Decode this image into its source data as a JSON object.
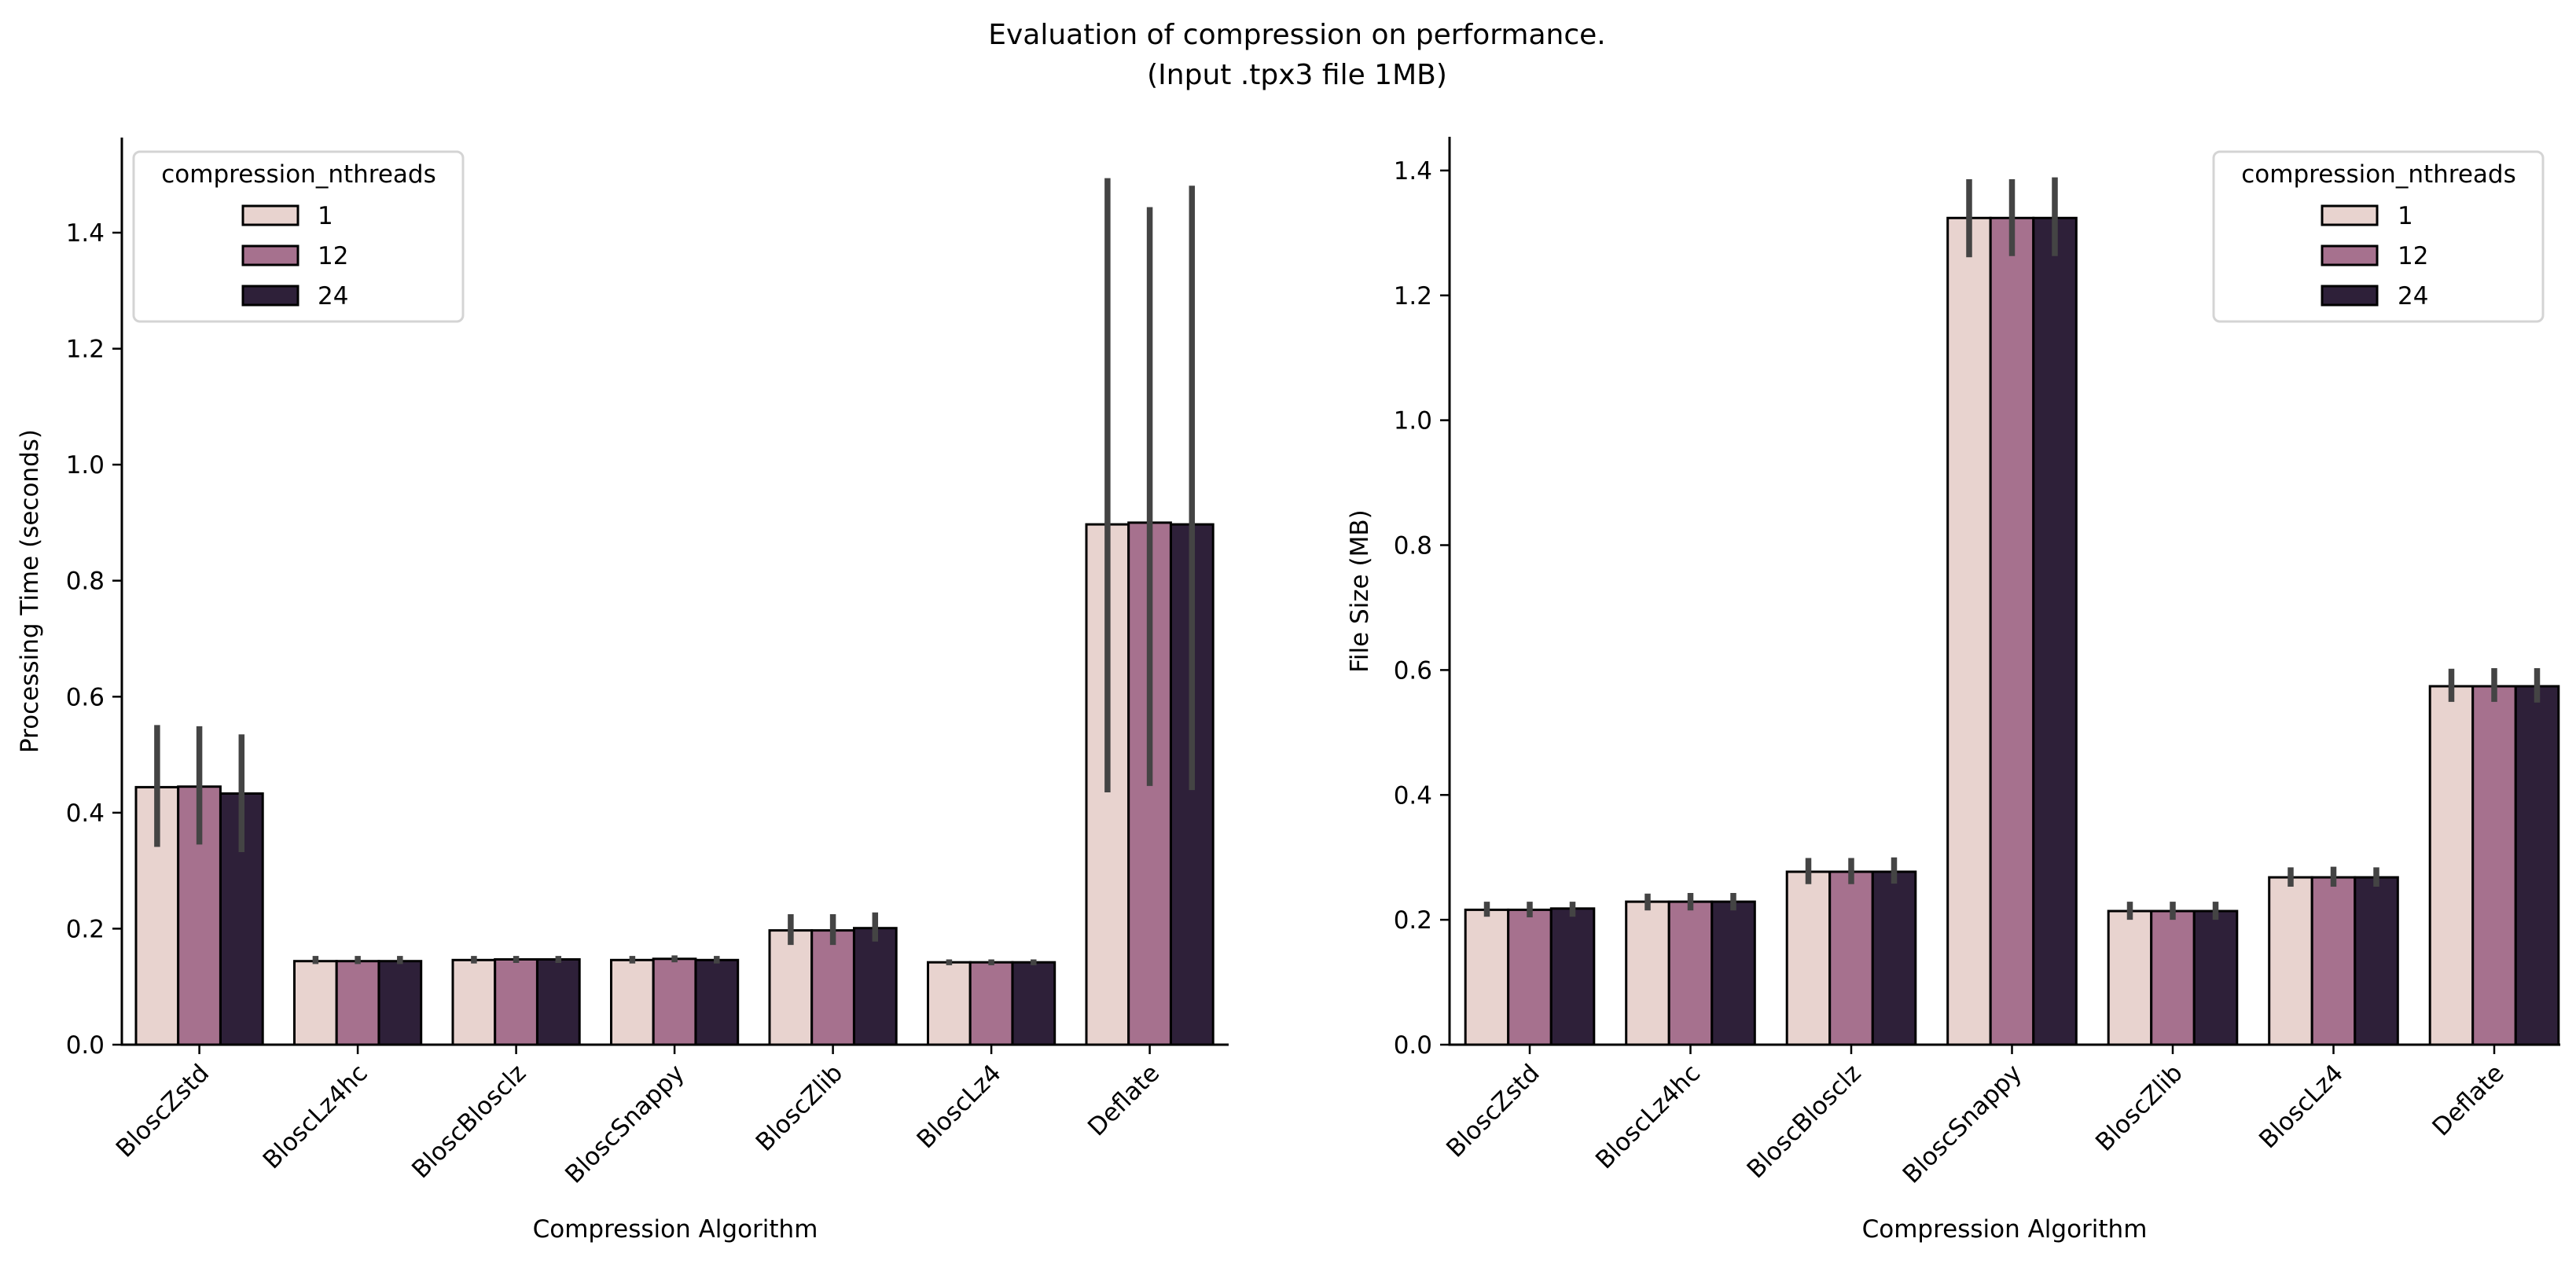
{
  "figure": {
    "title_line1": "Evaluation of compression on performance.",
    "title_line2": "(Input .tpx3 file 1MB)"
  },
  "colors": {
    "series": [
      "#e8d3cf",
      "#a6718e",
      "#2e2039"
    ],
    "edge": "#000000",
    "errorbar": "#444444",
    "legend_border": "#d4d4d4"
  },
  "chart_data": [
    {
      "type": "bar",
      "title": "",
      "xlabel": "Compression Algorithm",
      "ylabel": "Processing Time (seconds)",
      "ylim": [
        0,
        1.564
      ],
      "yticks": [
        "0.0",
        "0.2",
        "0.4",
        "0.6",
        "0.8",
        "1.0",
        "1.2",
        "1.4"
      ],
      "categories": [
        "BloscZstd",
        "BloscLz4hc",
        "BloscBlosclz",
        "BloscSnappy",
        "BloscZlib",
        "BloscLz4",
        "Deflate"
      ],
      "legend": {
        "title": "compression_nthreads",
        "position": "upper-left"
      },
      "grid": false,
      "series": [
        {
          "name": "1",
          "values": [
            0.444,
            0.144,
            0.146,
            0.146,
            0.197,
            0.142,
            0.897
          ],
          "err_low": [
            0.341,
            0.139,
            0.14,
            0.14,
            0.172,
            0.137,
            0.435
          ],
          "err_high": [
            0.551,
            0.153,
            0.153,
            0.153,
            0.225,
            0.147,
            1.494
          ]
        },
        {
          "name": "12",
          "values": [
            0.445,
            0.144,
            0.147,
            0.148,
            0.197,
            0.142,
            0.9
          ],
          "err_low": [
            0.345,
            0.139,
            0.141,
            0.142,
            0.172,
            0.137,
            0.446
          ],
          "err_high": [
            0.549,
            0.153,
            0.153,
            0.154,
            0.225,
            0.147,
            1.444
          ]
        },
        {
          "name": "24",
          "values": [
            0.433,
            0.144,
            0.147,
            0.146,
            0.201,
            0.142,
            0.897
          ],
          "err_low": [
            0.332,
            0.139,
            0.141,
            0.14,
            0.178,
            0.137,
            0.439
          ],
          "err_high": [
            0.535,
            0.153,
            0.153,
            0.153,
            0.228,
            0.147,
            1.481
          ]
        }
      ]
    },
    {
      "type": "bar",
      "title": "",
      "xlabel": "Compression Algorithm",
      "ylabel": "File Size (MB)",
      "ylim": [
        0,
        1.454
      ],
      "yticks": [
        "0.0",
        "0.2",
        "0.4",
        "0.6",
        "0.8",
        "1.0",
        "1.2",
        "1.4"
      ],
      "categories": [
        "BloscZstd",
        "BloscLz4hc",
        "BloscBlosclz",
        "BloscSnappy",
        "BloscZlib",
        "BloscLz4",
        "Deflate"
      ],
      "legend": {
        "title": "compression_nthreads",
        "position": "upper-right"
      },
      "grid": false,
      "series": [
        {
          "name": "1",
          "values": [
            0.216,
            0.229,
            0.277,
            1.324,
            0.214,
            0.268,
            0.574
          ],
          "err_low": [
            0.205,
            0.215,
            0.257,
            1.261,
            0.2,
            0.253,
            0.549
          ],
          "err_high": [
            0.229,
            0.242,
            0.299,
            1.386,
            0.229,
            0.284,
            0.602
          ]
        },
        {
          "name": "12",
          "values": [
            0.216,
            0.229,
            0.277,
            1.324,
            0.214,
            0.268,
            0.574
          ],
          "err_low": [
            0.204,
            0.215,
            0.257,
            1.263,
            0.2,
            0.253,
            0.549
          ],
          "err_high": [
            0.229,
            0.243,
            0.299,
            1.386,
            0.229,
            0.285,
            0.603
          ]
        },
        {
          "name": "24",
          "values": [
            0.218,
            0.229,
            0.277,
            1.324,
            0.214,
            0.268,
            0.574
          ],
          "err_low": [
            0.205,
            0.215,
            0.258,
            1.263,
            0.2,
            0.253,
            0.548
          ],
          "err_high": [
            0.229,
            0.243,
            0.3,
            1.389,
            0.229,
            0.284,
            0.603
          ]
        }
      ]
    }
  ]
}
